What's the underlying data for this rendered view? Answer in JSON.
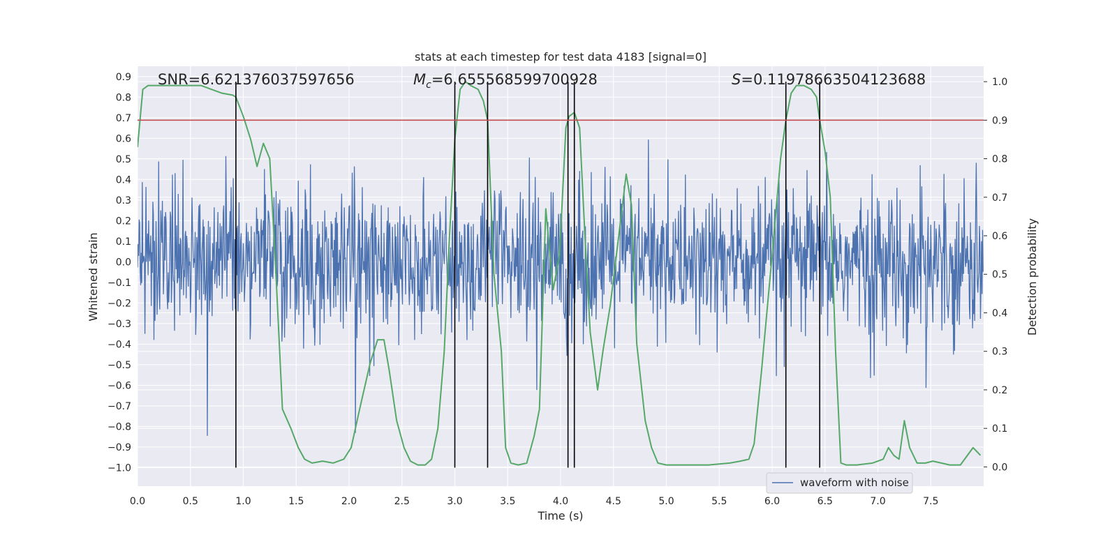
{
  "chart_data": {
    "type": "line",
    "title": "stats at each timestep for test data 4183 [signal=0]",
    "xlabel": "Time (s)",
    "ylabel_left": "Whitened strain",
    "ylabel_right": "Detection probability",
    "xlim": [
      0.0,
      8.0
    ],
    "ylim_left": [
      -1.09,
      0.95
    ],
    "ylim_right": [
      -0.05,
      1.04
    ],
    "x_ticks": [
      "0.0",
      "0.5",
      "1.0",
      "1.5",
      "2.0",
      "2.5",
      "3.0",
      "3.5",
      "4.0",
      "4.5",
      "5.0",
      "5.5",
      "6.0",
      "6.5",
      "7.0",
      "7.5"
    ],
    "y_ticks_left": [
      "0.9",
      "0.8",
      "0.7",
      "0.6",
      "0.5",
      "0.4",
      "0.3",
      "0.2",
      "0.1",
      "0.0",
      "−0.1",
      "−0.2",
      "−0.3",
      "−0.4",
      "−0.5",
      "−0.6",
      "−0.7",
      "−0.8",
      "−0.9",
      "−1.0"
    ],
    "y_ticks_right": [
      "1.0",
      "0.9",
      "0.8",
      "0.7",
      "0.6",
      "0.5",
      "0.4",
      "0.3",
      "0.2",
      "0.1",
      "0.0"
    ],
    "annotations": {
      "snr": "SNR=6.621376037597656",
      "mc_symbol": "M",
      "mc_sub": "c",
      "mc_value": "=6.655568599700928",
      "s_symbol": "S",
      "s_value": "=0.11978663504123688"
    },
    "legend": {
      "label": "waveform with noise",
      "location": "lower right"
    },
    "threshold": {
      "name": "threshold",
      "value_right": 0.9,
      "color": "#c44e52"
    },
    "vertical_markers": {
      "x": [
        0.93,
        3.0,
        3.31,
        4.07,
        4.13,
        6.13,
        6.45
      ],
      "from_left": -1.0,
      "to_right": 1.0,
      "color": "#000000"
    },
    "waveform": {
      "name": "waveform with noise",
      "color": "#4c72b0",
      "description_range": [
        -1.0,
        0.88
      ],
      "sample_rate_hz": 200
    },
    "detection_probability": {
      "name": "detection probability",
      "color": "#55a868",
      "x": [
        0.0,
        0.05,
        0.1,
        0.2,
        0.3,
        0.45,
        0.6,
        0.7,
        0.8,
        0.9,
        0.93,
        1.0,
        1.07,
        1.13,
        1.19,
        1.25,
        1.3,
        1.37,
        1.45,
        1.52,
        1.58,
        1.65,
        1.75,
        1.85,
        1.95,
        2.02,
        2.1,
        2.2,
        2.27,
        2.33,
        2.38,
        2.45,
        2.52,
        2.58,
        2.65,
        2.72,
        2.78,
        2.84,
        2.9,
        2.95,
        3.0,
        3.05,
        3.1,
        3.15,
        3.22,
        3.27,
        3.31,
        3.37,
        3.44,
        3.48,
        3.53,
        3.6,
        3.68,
        3.75,
        3.8,
        3.86,
        3.93,
        3.99,
        4.05,
        4.08,
        4.13,
        4.18,
        4.23,
        4.28,
        4.35,
        4.4,
        4.47,
        4.55,
        4.62,
        4.67,
        4.72,
        4.8,
        4.86,
        4.92,
        5.0,
        5.2,
        5.4,
        5.6,
        5.7,
        5.78,
        5.83,
        5.9,
        6.0,
        6.08,
        6.13,
        6.18,
        6.23,
        6.3,
        6.37,
        6.42,
        6.45,
        6.5,
        6.55,
        6.6,
        6.65,
        6.7,
        6.8,
        6.95,
        7.05,
        7.1,
        7.15,
        7.2,
        7.25,
        7.3,
        7.37,
        7.45,
        7.52,
        7.6,
        7.68,
        7.78,
        7.9,
        7.97
      ],
      "values": [
        0.83,
        0.98,
        0.99,
        0.99,
        0.99,
        0.99,
        0.99,
        0.98,
        0.97,
        0.965,
        0.96,
        0.91,
        0.85,
        0.78,
        0.84,
        0.8,
        0.55,
        0.15,
        0.1,
        0.05,
        0.02,
        0.01,
        0.015,
        0.01,
        0.02,
        0.05,
        0.15,
        0.27,
        0.33,
        0.33,
        0.25,
        0.12,
        0.05,
        0.015,
        0.005,
        0.005,
        0.02,
        0.1,
        0.3,
        0.6,
        0.85,
        0.98,
        1.0,
        0.99,
        0.98,
        0.95,
        0.9,
        0.5,
        0.3,
        0.05,
        0.01,
        0.005,
        0.01,
        0.08,
        0.15,
        0.67,
        0.46,
        0.55,
        0.88,
        0.91,
        0.92,
        0.88,
        0.6,
        0.35,
        0.2,
        0.3,
        0.42,
        0.6,
        0.76,
        0.68,
        0.32,
        0.12,
        0.05,
        0.01,
        0.005,
        0.005,
        0.005,
        0.01,
        0.015,
        0.02,
        0.06,
        0.25,
        0.55,
        0.8,
        0.9,
        0.97,
        0.99,
        0.99,
        0.98,
        0.96,
        0.9,
        0.82,
        0.7,
        0.3,
        0.01,
        0.005,
        0.005,
        0.01,
        0.02,
        0.05,
        0.03,
        0.02,
        0.12,
        0.05,
        0.01,
        0.01,
        0.015,
        0.01,
        0.005,
        0.005,
        0.05,
        0.03
      ]
    }
  }
}
